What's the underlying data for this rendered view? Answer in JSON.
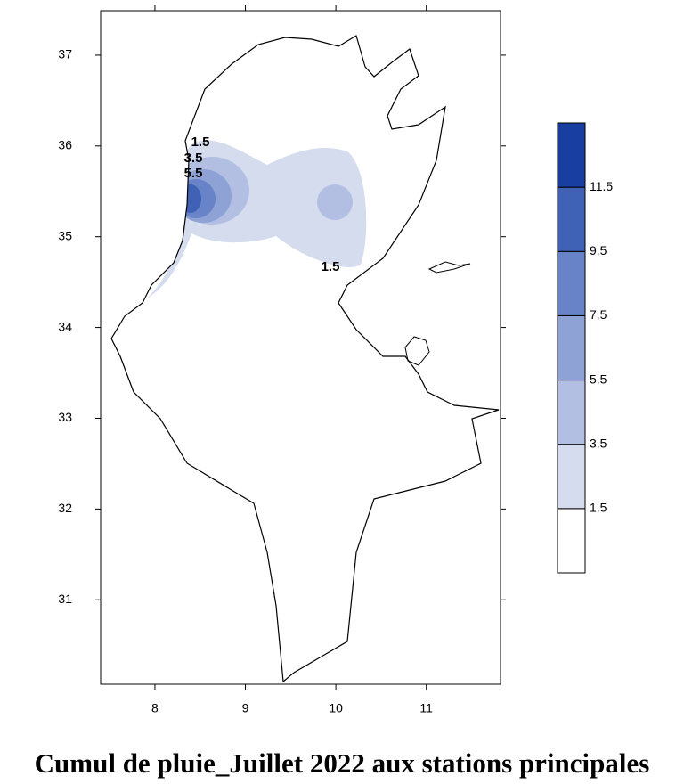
{
  "chart_data": {
    "type": "contour-map",
    "title": "Cumul de pluie_Juillet 2022 aux stations principales",
    "xlim": [
      7.4,
      11.82
    ],
    "ylim": [
      30.07,
      37.49
    ],
    "xticks": [
      8,
      9,
      10,
      11
    ],
    "yticks": [
      31,
      32,
      33,
      34,
      35,
      36,
      37
    ],
    "contour_labels": [
      "1.5",
      "3.5",
      "5.5",
      "1.5"
    ],
    "legend": {
      "levels": [
        1.5,
        3.5,
        5.5,
        7.5,
        9.5,
        11.5
      ],
      "colors": [
        "#ffffff",
        "#d5dcee",
        "#b2bfe3",
        "#8ea2d6",
        "#6883c8",
        "#3f61b6",
        "#173ea0"
      ]
    }
  }
}
